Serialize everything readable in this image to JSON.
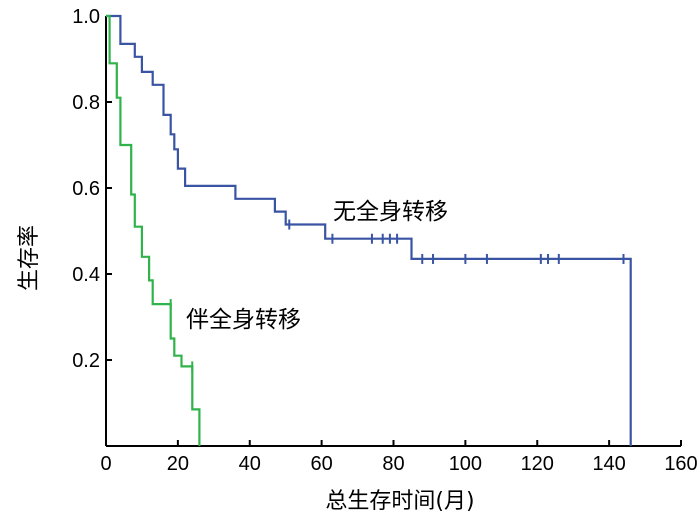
{
  "chart_data": {
    "type": "line",
    "step": true,
    "xlabel": "总生存时间(月)",
    "ylabel": "生存率",
    "xlim": [
      0,
      160
    ],
    "ylim": [
      0,
      1.0
    ],
    "x_ticks": [
      0,
      20,
      40,
      60,
      80,
      100,
      120,
      140,
      160
    ],
    "x_tick_labels": [
      "0",
      "20",
      "40",
      "60",
      "80",
      "100",
      "120",
      "140",
      "160"
    ],
    "y_ticks": [
      0.2,
      0.4,
      0.6,
      0.8,
      1.0
    ],
    "y_tick_labels": [
      "0.2",
      "0.4",
      "0.6",
      "0.8",
      "1.0"
    ],
    "grid": false,
    "series": [
      {
        "name": "无全身转移",
        "color": "#3a54a4",
        "steps": [
          [
            0,
            1.0
          ],
          [
            4,
            1.0
          ],
          [
            4,
            0.935
          ],
          [
            8,
            0.935
          ],
          [
            8,
            0.905
          ],
          [
            10,
            0.905
          ],
          [
            10,
            0.87
          ],
          [
            13,
            0.87
          ],
          [
            13,
            0.84
          ],
          [
            16,
            0.84
          ],
          [
            16,
            0.77
          ],
          [
            18,
            0.77
          ],
          [
            18,
            0.725
          ],
          [
            19,
            0.725
          ],
          [
            19,
            0.69
          ],
          [
            20,
            0.69
          ],
          [
            20,
            0.645
          ],
          [
            22,
            0.645
          ],
          [
            22,
            0.605
          ],
          [
            36,
            0.605
          ],
          [
            36,
            0.575
          ],
          [
            47,
            0.575
          ],
          [
            47,
            0.545
          ],
          [
            50,
            0.545
          ],
          [
            50,
            0.515
          ],
          [
            61,
            0.515
          ],
          [
            61,
            0.482
          ],
          [
            85,
            0.482
          ],
          [
            85,
            0.435
          ],
          [
            146,
            0.435
          ],
          [
            146,
            0.0
          ]
        ],
        "censored": [
          [
            51,
            0.515
          ],
          [
            63,
            0.482
          ],
          [
            74,
            0.482
          ],
          [
            77,
            0.482
          ],
          [
            79,
            0.482
          ],
          [
            81,
            0.482
          ],
          [
            88,
            0.435
          ],
          [
            91,
            0.435
          ],
          [
            100,
            0.435
          ],
          [
            106,
            0.435
          ],
          [
            121,
            0.435
          ],
          [
            123,
            0.435
          ],
          [
            126,
            0.435
          ],
          [
            144,
            0.435
          ]
        ]
      },
      {
        "name": "伴全身转移",
        "color": "#2fb34a",
        "steps": [
          [
            0,
            1.0
          ],
          [
            1,
            1.0
          ],
          [
            1,
            0.89
          ],
          [
            3,
            0.89
          ],
          [
            3,
            0.81
          ],
          [
            4,
            0.81
          ],
          [
            4,
            0.7
          ],
          [
            7,
            0.7
          ],
          [
            7,
            0.585
          ],
          [
            8,
            0.585
          ],
          [
            8,
            0.51
          ],
          [
            10,
            0.51
          ],
          [
            10,
            0.44
          ],
          [
            12,
            0.44
          ],
          [
            12,
            0.385
          ],
          [
            13,
            0.385
          ],
          [
            13,
            0.33
          ],
          [
            18,
            0.33
          ],
          [
            18,
            0.25
          ],
          [
            19,
            0.25
          ],
          [
            19,
            0.21
          ],
          [
            21,
            0.21
          ],
          [
            21,
            0.185
          ],
          [
            24,
            0.185
          ],
          [
            24,
            0.085
          ],
          [
            26,
            0.085
          ],
          [
            26,
            0.0
          ]
        ],
        "censored": [
          [
            18,
            0.33
          ],
          [
            24,
            0.185
          ]
        ]
      }
    ]
  }
}
